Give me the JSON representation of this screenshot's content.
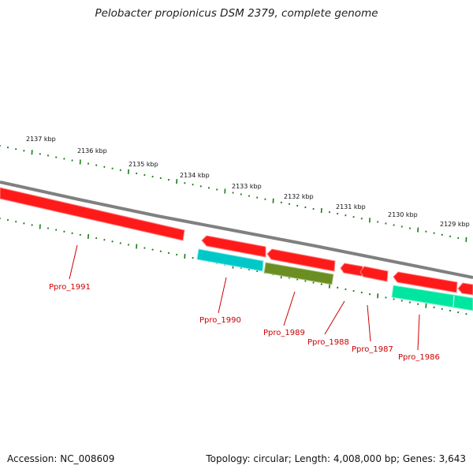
{
  "title": "Pelobacter propionicus DSM 2379, complete genome",
  "footer": {
    "accession": "Accession: NC_008609",
    "stats": "Topology: circular; Length: 4,008,000 bp; Genes: 3,643"
  },
  "kbp_labels": [
    "2137 kbp",
    "2136 kbp",
    "2135 kbp",
    "2134 kbp",
    "2133 kbp",
    "2132 kbp",
    "2131 kbp",
    "2130 kbp",
    "2129 kbp"
  ],
  "genes": [
    {
      "name": "Ppro_1991",
      "strand": "forward",
      "color": "#ff0000"
    },
    {
      "name": "Ppro_1990",
      "strand": "forward",
      "color": "#ff0000"
    },
    {
      "name": "Ppro_1989",
      "strand": "forward",
      "color": "#ff0000"
    },
    {
      "name": "Ppro_1988",
      "strand": "forward",
      "color": "#ff0000"
    },
    {
      "name": "Ppro_1987",
      "strand": "forward",
      "color": "#ff0000"
    },
    {
      "name": "Ppro_1986",
      "strand": "forward",
      "color": "#ff0000"
    }
  ],
  "features": [
    {
      "color": "#00c8c8"
    },
    {
      "color": "#6b8e23"
    },
    {
      "color": "#00e6a0"
    }
  ],
  "colors": {
    "backbone": "#808080",
    "gene": "#ff0000",
    "ticks": "#1a7a1a",
    "label": "#cc0000"
  }
}
